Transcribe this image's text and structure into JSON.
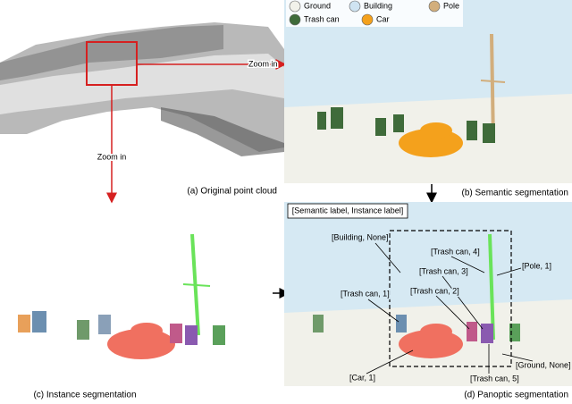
{
  "legend": [
    {
      "label": "Ground",
      "color": "#f2f2ea"
    },
    {
      "label": "Building",
      "color": "#cfe4f2"
    },
    {
      "label": "Pole",
      "color": "#d2ae7c"
    },
    {
      "label": "Trash can",
      "color": "#3f6b3a"
    },
    {
      "label": "Car",
      "color": "#f4a11c"
    }
  ],
  "arrows": {
    "zoom_right": "Zoom in",
    "zoom_down": "Zoom in"
  },
  "captions": {
    "a": "(a) Original point cloud",
    "b": "(b) Semantic segmentation",
    "c": "(c) Instance segmentation",
    "d": "(d) Panoptic segmentation"
  },
  "panoptic": {
    "key": "[Semantic label, Instance label]",
    "labels": [
      "[Building, None]",
      "[Trash can, 4]",
      "[Trash can, 3]",
      "[Pole, 1]",
      "[Trash can, 2]",
      "[Trash can, 1]",
      "[Car, 1]",
      "[Trash can, 5]",
      "[Ground, None]"
    ]
  }
}
